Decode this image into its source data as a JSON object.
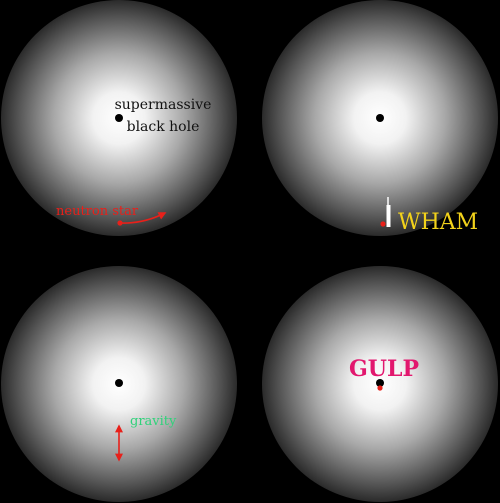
{
  "colors": {
    "background": "#000000",
    "glow_center": "#ffffff",
    "glow_edge": "#2a2a2a",
    "hole": "#000000",
    "neutron_star": "#e8201a",
    "label_dark": "#111111",
    "label_red": "#e8201a",
    "label_yellow": "#f2d21b",
    "label_green": "#2fd27a",
    "label_pink": "#e2176e",
    "jet": "#ffffff"
  },
  "panels": [
    {
      "id": "panel-1",
      "label_black_hole_line1": "supermassive",
      "label_black_hole_line2": "black hole",
      "label_neutron_star": "neutron star"
    },
    {
      "id": "panel-2",
      "label_impact": "WHAM"
    },
    {
      "id": "panel-3",
      "label_force": "gravity"
    },
    {
      "id": "panel-4",
      "label_swallow": "GULP"
    }
  ]
}
